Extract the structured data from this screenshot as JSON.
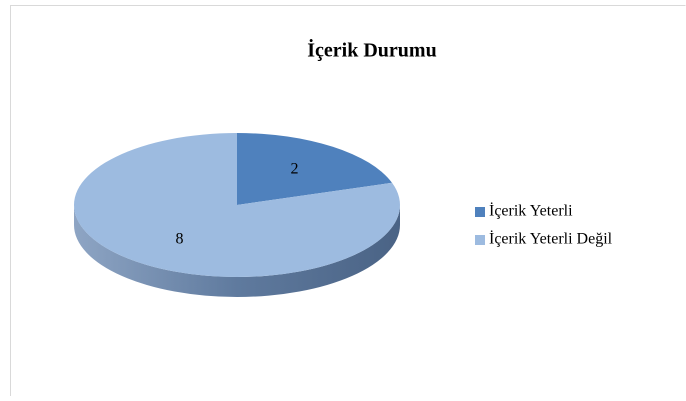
{
  "chart_data": {
    "type": "pie3d",
    "title": "İçerik Durumu",
    "categories": [
      "İçerik Yeterli",
      "İçerik Yeterli Değil"
    ],
    "values": [
      2,
      8
    ],
    "colors": [
      "#4f81bd",
      "#9dbbe0"
    ],
    "legend": "right"
  }
}
